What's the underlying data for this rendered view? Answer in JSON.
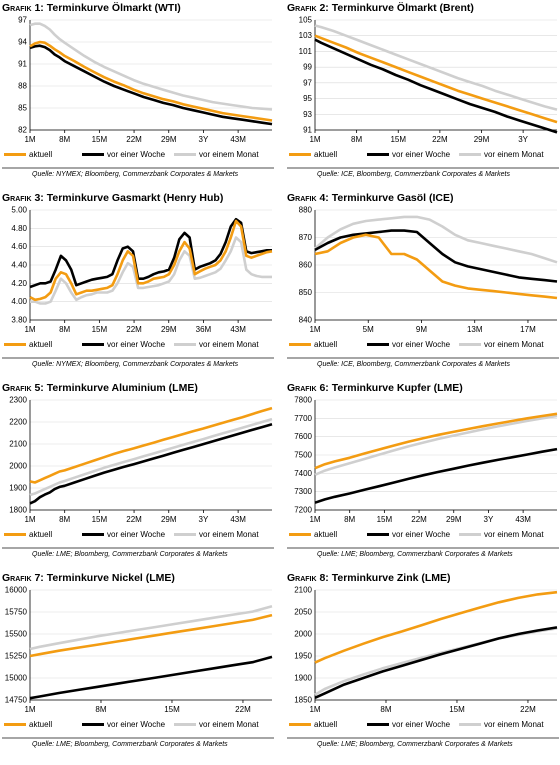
{
  "colors": {
    "aktuell": "#f39c12",
    "woche": "#000000",
    "monat": "#cfcfcf",
    "grid": "#d9d9d9"
  },
  "chart_data": [
    {
      "type": "line",
      "label": "Grafik 1:",
      "title": "Terminkurve Ölmarkt (WTI)",
      "x_ticks": [
        "1M",
        "8M",
        "15M",
        "22M",
        "29M",
        "3Y",
        "43M"
      ],
      "x": [
        1,
        2,
        3,
        4,
        5,
        6,
        7,
        8,
        10,
        12,
        14,
        16,
        18,
        20,
        22,
        24,
        26,
        28,
        30,
        32,
        34,
        36,
        38,
        40,
        42,
        44,
        46,
        48,
        50
      ],
      "ylim": [
        82,
        97
      ],
      "y_ticks": [
        "82",
        "85",
        "88",
        "91",
        "94",
        "97"
      ],
      "series": [
        {
          "name": "aktuell",
          "values": [
            93.4,
            93.8,
            94.0,
            93.9,
            93.5,
            93.0,
            92.6,
            92.1,
            91.4,
            90.6,
            89.9,
            89.2,
            88.6,
            88.1,
            87.5,
            87.0,
            86.6,
            86.2,
            85.9,
            85.5,
            85.2,
            84.9,
            84.6,
            84.3,
            84.1,
            83.9,
            83.7,
            83.5,
            83.3
          ]
        },
        {
          "name": "vor einer Woche",
          "values": [
            93.2,
            93.4,
            93.5,
            93.3,
            92.9,
            92.3,
            91.9,
            91.4,
            90.7,
            90.0,
            89.3,
            88.6,
            88.0,
            87.5,
            87.0,
            86.5,
            86.1,
            85.7,
            85.4,
            85.0,
            84.7,
            84.4,
            84.1,
            83.8,
            83.6,
            83.4,
            83.2,
            83.0,
            82.8
          ]
        },
        {
          "name": "vor einem Monat",
          "values": [
            96.3,
            96.5,
            96.5,
            96.2,
            95.7,
            95.0,
            94.4,
            93.9,
            93.0,
            92.1,
            91.3,
            90.6,
            90.0,
            89.4,
            88.8,
            88.3,
            87.9,
            87.5,
            87.1,
            86.7,
            86.4,
            86.1,
            85.8,
            85.6,
            85.4,
            85.2,
            85.0,
            84.9,
            84.8
          ]
        }
      ],
      "legend": [
        "aktuell",
        "vor einer Woche",
        "vor einem Monat"
      ],
      "source": "Quelle: NYMEX; Bloomberg, Commerzbank Corporates & Markets"
    },
    {
      "type": "line",
      "label": "Grafik 2:",
      "title": "Terminkurve Ölmarkt (Brent)",
      "x_ticks": [
        "1M",
        "8M",
        "15M",
        "22M",
        "29M",
        "3Y"
      ],
      "x": [
        1,
        2,
        4,
        6,
        8,
        10,
        12,
        14,
        16,
        18,
        20,
        22,
        24,
        26,
        28,
        30,
        32,
        34,
        36,
        38,
        40
      ],
      "ylim": [
        91,
        105
      ],
      "y_ticks": [
        "91",
        "93",
        "95",
        "97",
        "99",
        "101",
        "103",
        "105"
      ],
      "series": [
        {
          "name": "aktuell",
          "values": [
            103.0,
            102.7,
            102.1,
            101.5,
            100.8,
            100.2,
            99.6,
            99.0,
            98.4,
            97.8,
            97.2,
            96.6,
            96.0,
            95.5,
            95.0,
            94.5,
            94.0,
            93.5,
            93.0,
            92.5,
            92.0
          ]
        },
        {
          "name": "vor einer Woche",
          "values": [
            102.5,
            102.1,
            101.4,
            100.7,
            100.0,
            99.3,
            98.7,
            98.0,
            97.4,
            96.7,
            96.1,
            95.5,
            94.9,
            94.3,
            93.8,
            93.3,
            92.7,
            92.2,
            91.7,
            91.2,
            90.7
          ]
        },
        {
          "name": "vor einem Monat",
          "values": [
            104.3,
            104.1,
            103.6,
            103.0,
            102.4,
            101.8,
            101.2,
            100.6,
            100.0,
            99.4,
            98.8,
            98.2,
            97.6,
            97.1,
            96.6,
            96.0,
            95.5,
            95.0,
            94.5,
            94.0,
            93.6
          ]
        }
      ],
      "legend": [
        "aktuell",
        "vor einer Woche",
        "vor einem Monat"
      ],
      "source": "Quelle: ICE, Bloomberg, Commerzbank Corporates & Markets"
    },
    {
      "type": "line",
      "label": "Grafik 3:",
      "title": "Terminkurve Gasmarkt (Henry Hub)",
      "x_ticks": [
        "1M",
        "8M",
        "15M",
        "22M",
        "29M",
        "36M",
        "43M"
      ],
      "x": [
        1,
        2,
        3,
        4,
        5,
        6,
        7,
        8,
        9,
        10,
        11,
        12,
        13,
        14,
        15,
        16,
        17,
        18,
        19,
        20,
        21,
        22,
        23,
        24,
        25,
        26,
        27,
        28,
        29,
        30,
        31,
        32,
        33,
        34,
        35,
        36,
        37,
        38,
        39,
        40,
        41,
        42,
        43,
        44,
        45,
        46,
        47,
        48
      ],
      "ylim": [
        3.8,
        5.0
      ],
      "y_ticks": [
        "3.80",
        "4.00",
        "4.20",
        "4.40",
        "4.60",
        "4.80",
        "5.00"
      ],
      "series": [
        {
          "name": "aktuell",
          "values": [
            4.05,
            4.02,
            4.03,
            4.05,
            4.1,
            4.25,
            4.32,
            4.3,
            4.2,
            4.08,
            4.1,
            4.12,
            4.12,
            4.13,
            4.14,
            4.15,
            4.18,
            4.3,
            4.45,
            4.55,
            4.5,
            4.2,
            4.2,
            4.22,
            4.25,
            4.26,
            4.27,
            4.3,
            4.4,
            4.55,
            4.65,
            4.58,
            4.3,
            4.33,
            4.36,
            4.38,
            4.4,
            4.45,
            4.55,
            4.7,
            4.88,
            4.82,
            4.5,
            4.48,
            4.5,
            4.52,
            4.54,
            4.55
          ]
        },
        {
          "name": "vor einer Woche",
          "values": [
            4.16,
            4.18,
            4.2,
            4.2,
            4.22,
            4.35,
            4.5,
            4.45,
            4.35,
            4.18,
            4.2,
            4.22,
            4.24,
            4.25,
            4.26,
            4.27,
            4.3,
            4.45,
            4.58,
            4.6,
            4.55,
            4.25,
            4.25,
            4.27,
            4.3,
            4.32,
            4.33,
            4.35,
            4.48,
            4.68,
            4.75,
            4.7,
            4.35,
            4.38,
            4.4,
            4.42,
            4.45,
            4.52,
            4.65,
            4.82,
            4.9,
            4.86,
            4.55,
            4.53,
            4.54,
            4.55,
            4.56,
            4.56
          ]
        },
        {
          "name": "vor einem Monat",
          "values": [
            4.0,
            4.0,
            3.98,
            3.98,
            4.0,
            4.12,
            4.25,
            4.2,
            4.1,
            4.02,
            4.05,
            4.07,
            4.08,
            4.1,
            4.1,
            4.1,
            4.12,
            4.2,
            4.32,
            4.42,
            4.38,
            4.15,
            4.15,
            4.16,
            4.17,
            4.18,
            4.2,
            4.22,
            4.3,
            4.45,
            4.55,
            4.5,
            4.25,
            4.26,
            4.28,
            4.3,
            4.32,
            4.36,
            4.45,
            4.55,
            4.7,
            4.65,
            4.35,
            4.3,
            4.28,
            4.27,
            4.27,
            4.27
          ]
        }
      ],
      "legend": [
        "aktuell",
        "vor einer Woche",
        "vor einem Monat"
      ],
      "source": "Quelle: NYMEX; Bloomberg, Commerzbank Corporates & Markets"
    },
    {
      "type": "line",
      "label": "Grafik 4:",
      "title": "Terminkurve Gasöl (ICE)",
      "x_ticks": [
        "1M",
        "5M",
        "9M",
        "13M",
        "17M"
      ],
      "x": [
        1,
        2,
        3,
        4,
        5,
        6,
        7,
        8,
        9,
        10,
        11,
        12,
        13,
        14,
        15,
        16,
        17,
        18,
        19,
        20
      ],
      "ylim": [
        840,
        880
      ],
      "y_ticks": [
        "840",
        "850",
        "860",
        "870",
        "880"
      ],
      "series": [
        {
          "name": "aktuell",
          "values": [
            864.0,
            865.0,
            868.0,
            870.0,
            871.0,
            870.0,
            864.0,
            864.0,
            862.0,
            858.0,
            854.0,
            852.5,
            851.5,
            851.0,
            850.5,
            850.0,
            849.5,
            849.0,
            848.5,
            848.0
          ]
        },
        {
          "name": "vor einer Woche",
          "values": [
            865.5,
            868.0,
            870.0,
            871.0,
            871.5,
            872.0,
            872.5,
            872.5,
            872.0,
            868.0,
            864.0,
            861.0,
            859.5,
            858.5,
            857.5,
            856.5,
            855.5,
            855.0,
            854.5,
            854.0
          ]
        },
        {
          "name": "vor einem Monat",
          "values": [
            866.0,
            870.0,
            873.0,
            875.0,
            876.0,
            876.5,
            877.0,
            877.5,
            877.5,
            876.5,
            874.0,
            871.0,
            869.0,
            868.0,
            867.0,
            866.0,
            865.0,
            864.0,
            862.5,
            861.0
          ]
        }
      ],
      "legend": [
        "aktuell",
        "vor einer Woche",
        "vor einem Monat"
      ],
      "source": "Quelle: ICE, Bloomberg, Commerzbank Corporates & Markets"
    },
    {
      "type": "line",
      "label": "Grafik 5:",
      "title": "Terminkurve Aluminium (LME)",
      "x_ticks": [
        "1M",
        "8M",
        "15M",
        "22M",
        "29M",
        "3Y",
        "43M"
      ],
      "x": [
        1,
        2,
        3,
        4,
        5,
        6,
        7,
        8,
        10,
        12,
        14,
        16,
        18,
        20,
        22,
        24,
        26,
        28,
        30,
        32,
        34,
        36,
        38,
        40,
        42,
        44,
        46,
        48,
        50
      ],
      "ylim": [
        1800,
        2300
      ],
      "y_ticks": [
        "1800",
        "1900",
        "2000",
        "2100",
        "2200",
        "2300"
      ],
      "series": [
        {
          "name": "aktuell",
          "values": [
            1930,
            1925,
            1935,
            1945,
            1955,
            1965,
            1975,
            1980,
            1995,
            2010,
            2025,
            2040,
            2055,
            2068,
            2080,
            2093,
            2106,
            2119,
            2132,
            2145,
            2158,
            2170,
            2183,
            2196,
            2209,
            2222,
            2236,
            2250,
            2263
          ]
        },
        {
          "name": "vor einer Woche",
          "values": [
            1830,
            1840,
            1858,
            1870,
            1880,
            1895,
            1905,
            1910,
            1925,
            1940,
            1955,
            1970,
            1983,
            1996,
            2008,
            2021,
            2034,
            2047,
            2060,
            2073,
            2086,
            2099,
            2112,
            2125,
            2138,
            2151,
            2164,
            2177,
            2190
          ]
        },
        {
          "name": "vor einem Monat",
          "values": [
            1868,
            1875,
            1885,
            1895,
            1905,
            1915,
            1925,
            1932,
            1947,
            1962,
            1977,
            1992,
            2005,
            2018,
            2031,
            2044,
            2057,
            2070,
            2083,
            2096,
            2109,
            2122,
            2135,
            2148,
            2161,
            2174,
            2187,
            2200,
            2213
          ]
        }
      ],
      "legend": [
        "aktuell",
        "vor einer Woche",
        "vor einem Monat"
      ],
      "source": "Quelle: LME; Bloomberg, Commerzbank Corporates & Markets"
    },
    {
      "type": "line",
      "label": "Grafik 6:",
      "title": "Terminkurve Kupfer (LME)",
      "x_ticks": [
        "1M",
        "8M",
        "15M",
        "22M",
        "29M",
        "3Y",
        "43M"
      ],
      "x": [
        1,
        3,
        5,
        8,
        11,
        14,
        17,
        20,
        23,
        26,
        29,
        32,
        35,
        38,
        41,
        44,
        47,
        50
      ],
      "ylim": [
        7200,
        7800
      ],
      "y_ticks": [
        "7200",
        "7300",
        "7400",
        "7500",
        "7600",
        "7700",
        "7800"
      ],
      "series": [
        {
          "name": "aktuell",
          "values": [
            7428,
            7450,
            7465,
            7485,
            7508,
            7530,
            7552,
            7573,
            7592,
            7610,
            7626,
            7642,
            7657,
            7672,
            7686,
            7700,
            7713,
            7725
          ]
        },
        {
          "name": "vor einer Woche",
          "values": [
            7240,
            7258,
            7272,
            7290,
            7310,
            7330,
            7350,
            7370,
            7390,
            7408,
            7425,
            7442,
            7458,
            7473,
            7488,
            7503,
            7518,
            7532
          ]
        },
        {
          "name": "vor einem Monat",
          "values": [
            7392,
            7415,
            7432,
            7455,
            7478,
            7502,
            7525,
            7548,
            7568,
            7588,
            7606,
            7623,
            7640,
            7656,
            7671,
            7686,
            7700,
            7713
          ]
        }
      ],
      "legend": [
        "aktuell",
        "vor einer Woche",
        "vor einem Monat"
      ],
      "source": "Quelle: LME; Bloomberg, Commerzbank Corporates & Markets"
    },
    {
      "type": "line",
      "label": "Grafik 7:",
      "title": "Terminkurve Nickel (LME)",
      "x_ticks": [
        "1M",
        "8M",
        "15M",
        "22M"
      ],
      "x": [
        1,
        2,
        4,
        6,
        8,
        10,
        12,
        14,
        16,
        18,
        20,
        22,
        24,
        26
      ],
      "ylim": [
        14750,
        16000
      ],
      "y_ticks": [
        "14750",
        "15000",
        "15250",
        "15500",
        "15750",
        "16000"
      ],
      "series": [
        {
          "name": "aktuell",
          "values": [
            15250,
            15270,
            15310,
            15345,
            15380,
            15415,
            15450,
            15485,
            15520,
            15555,
            15590,
            15625,
            15660,
            15715
          ]
        },
        {
          "name": "vor einer Woche",
          "values": [
            14770,
            14790,
            14830,
            14865,
            14900,
            14935,
            14970,
            15005,
            15040,
            15075,
            15110,
            15145,
            15180,
            15240
          ]
        },
        {
          "name": "vor einem Monat",
          "values": [
            15330,
            15355,
            15395,
            15435,
            15475,
            15510,
            15545,
            15580,
            15615,
            15650,
            15685,
            15720,
            15755,
            15815
          ]
        }
      ],
      "legend": [
        "aktuell",
        "vor einer Woche",
        "vor einem Monat"
      ],
      "source": "Quelle: LME; Bloomberg, Commerzbank Corporates & Markets"
    },
    {
      "type": "line",
      "label": "Grafik 8:",
      "title": "Terminkurve Zink (LME)",
      "x_ticks": [
        "1M",
        "8M",
        "15M",
        "22M"
      ],
      "x": [
        1,
        2,
        4,
        6,
        8,
        10,
        12,
        14,
        16,
        18,
        20,
        22,
        24,
        26
      ],
      "ylim": [
        1850,
        2100
      ],
      "y_ticks": [
        "1850",
        "1900",
        "1950",
        "2000",
        "2050",
        "2100"
      ],
      "series": [
        {
          "name": "aktuell",
          "values": [
            1935,
            1945,
            1962,
            1978,
            1993,
            2006,
            2020,
            2034,
            2047,
            2060,
            2072,
            2082,
            2090,
            2095
          ]
        },
        {
          "name": "vor einer Woche",
          "values": [
            1855,
            1865,
            1885,
            1900,
            1915,
            1928,
            1941,
            1954,
            1966,
            1978,
            1990,
            2000,
            2008,
            2015
          ]
        },
        {
          "name": "vor einem Monat",
          "values": [
            1862,
            1875,
            1893,
            1908,
            1922,
            1934,
            1946,
            1957,
            1968,
            1979,
            1990,
            1998,
            2006,
            2013
          ]
        }
      ],
      "legend": [
        "aktuell",
        "vor einer Woche",
        "vor einem Monat"
      ],
      "source": "Quelle: LME; Bloomberg, Commerzbank Corporates & Markets"
    }
  ]
}
